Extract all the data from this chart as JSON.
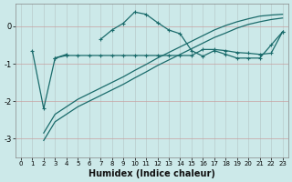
{
  "xlabel": "Humidex (Indice chaleur)",
  "background_color": "#cce9e9",
  "line_color": "#1a6b6b",
  "grid_color": "#b0d0d0",
  "x": [
    0,
    1,
    2,
    3,
    4,
    5,
    6,
    7,
    8,
    9,
    10,
    11,
    12,
    13,
    14,
    15,
    16,
    17,
    18,
    19,
    20,
    21,
    22,
    23
  ],
  "line1": [
    null,
    -0.65,
    -2.2,
    -0.85,
    -0.75,
    null,
    null,
    -0.35,
    -0.1,
    0.08,
    0.38,
    0.32,
    0.1,
    -0.1,
    -0.2,
    -0.65,
    -0.8,
    -0.65,
    -0.75,
    -0.85,
    -0.85,
    -0.85,
    -0.5,
    -0.15
  ],
  "line2": [
    null,
    null,
    null,
    -0.85,
    -0.78,
    -0.78,
    -0.78,
    -0.78,
    -0.78,
    -0.78,
    -0.78,
    -0.78,
    -0.78,
    -0.78,
    -0.78,
    -0.78,
    -0.62,
    -0.62,
    -0.65,
    -0.7,
    -0.72,
    -0.75,
    -0.72,
    -0.15
  ],
  "line3": [
    null,
    null,
    -3.05,
    -2.55,
    -2.35,
    -2.15,
    -2.0,
    -1.85,
    -1.7,
    -1.55,
    -1.38,
    -1.22,
    -1.05,
    -0.9,
    -0.75,
    -0.6,
    -0.45,
    -0.3,
    -0.18,
    -0.05,
    0.05,
    0.12,
    0.18,
    0.22
  ],
  "line4": [
    null,
    null,
    -2.85,
    -2.35,
    -2.15,
    -1.95,
    -1.8,
    -1.65,
    -1.5,
    -1.35,
    -1.18,
    -1.02,
    -0.85,
    -0.7,
    -0.55,
    -0.4,
    -0.25,
    -0.1,
    0.02,
    0.12,
    0.2,
    0.27,
    0.3,
    0.32
  ],
  "ylim": [
    -3.5,
    0.6
  ],
  "xlim": [
    -0.5,
    23.5
  ],
  "yticks": [
    0,
    -1,
    -2,
    -3
  ],
  "xticks": [
    0,
    1,
    2,
    3,
    4,
    5,
    6,
    7,
    8,
    9,
    10,
    11,
    12,
    13,
    14,
    15,
    16,
    17,
    18,
    19,
    20,
    21,
    22,
    23
  ],
  "figsize": [
    3.2,
    2.0
  ],
  "dpi": 100
}
